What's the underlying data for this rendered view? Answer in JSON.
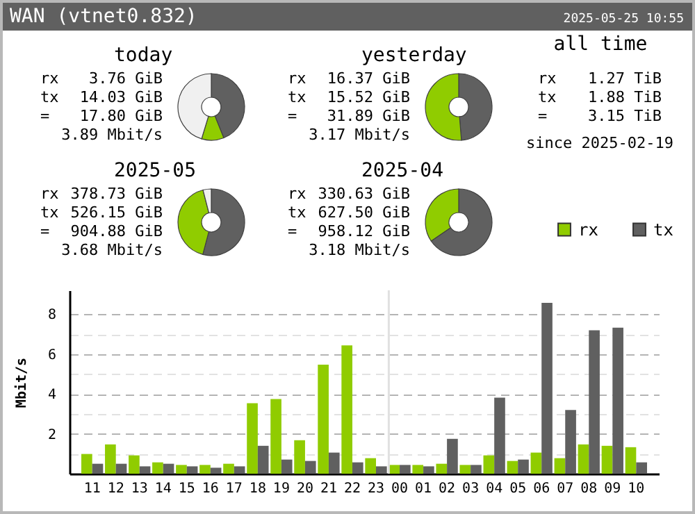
{
  "chart_data": [
    {
      "type": "other",
      "title": "WAN (vtnet0.832)",
      "annotations": [
        "2025-05-25 10:55"
      ]
    },
    {
      "type": "donut",
      "title": "today",
      "categories": [
        null,
        null,
        null
      ],
      "values": [
        43.9,
        10.8,
        45.3
      ],
      "colors": [
        "#606060",
        "#90cc00",
        "#f0f0f0"
      ],
      "legend": false,
      "annotations": [
        "rx",
        "3.76 GiB",
        "tx",
        "14.03 GiB",
        "=",
        "17.80 GiB",
        "3.89 Mbit/s"
      ]
    },
    {
      "type": "donut",
      "title": "yesterday",
      "categories": [
        null,
        null
      ],
      "values": [
        48.7,
        51.3
      ],
      "colors": [
        "#606060",
        "#90cc00"
      ],
      "legend": false,
      "annotations": [
        "rx",
        "16.37 GiB",
        "tx",
        "15.52 GiB",
        "=",
        "31.89 GiB",
        "3.17 Mbit/s"
      ]
    },
    {
      "type": "other",
      "title": "all time",
      "annotations": [
        "rx",
        "1.27 TiB",
        "tx",
        "1.88 TiB",
        "=",
        "3.15 TiB",
        "since 2025-02-19"
      ]
    },
    {
      "type": "donut",
      "title": "2025-05",
      "categories": [
        null,
        null,
        null
      ],
      "values": [
        54.1,
        41.9,
        4.0
      ],
      "colors": [
        "#606060",
        "#90cc00",
        "#f0f0f0"
      ],
      "legend": false,
      "annotations": [
        "rx",
        "378.73 GiB",
        "tx",
        "526.15 GiB",
        "=",
        "904.88 GiB",
        "3.68 Mbit/s"
      ]
    },
    {
      "type": "donut",
      "title": "2025-04",
      "categories": [
        null,
        null
      ],
      "values": [
        65.5,
        34.5
      ],
      "colors": [
        "#606060",
        "#90cc00"
      ],
      "legend": false,
      "annotations": [
        "rx",
        "330.63 GiB",
        "tx",
        "627.50 GiB",
        "=",
        "958.12 GiB",
        "3.18 Mbit/s"
      ]
    },
    {
      "type": "bar",
      "ylabel": "Mbit/s",
      "categories": [
        "11",
        "12",
        "13",
        "14",
        "15",
        "16",
        "17",
        "18",
        "19",
        "20",
        "21",
        "22",
        "23",
        "00",
        "01",
        "02",
        "03",
        "04",
        "05",
        "06",
        "07",
        "08",
        "09",
        "10"
      ],
      "series": [
        {
          "name": "rx",
          "color": "#90cc00",
          "values": [
            0.99,
            1.47,
            0.92,
            0.57,
            0.44,
            0.44,
            0.5,
            3.54,
            3.75,
            1.68,
            5.47,
            6.44,
            0.78,
            0.44,
            0.44,
            0.5,
            0.44,
            0.92,
            0.64,
            1.06,
            0.78,
            1.47,
            1.4,
            1.33
          ]
        },
        {
          "name": "tx",
          "color": "#606060",
          "values": [
            0.5,
            0.5,
            0.37,
            0.5,
            0.37,
            0.3,
            0.37,
            1.4,
            0.71,
            0.64,
            1.06,
            0.57,
            0.37,
            0.44,
            0.37,
            1.75,
            0.44,
            3.82,
            0.71,
            8.57,
            3.2,
            7.2,
            7.33,
            0.57
          ]
        }
      ],
      "ylim": [
        0,
        9.2
      ],
      "yticks": [
        {
          "value": 1,
          "label": null
        },
        2,
        {
          "value": 3,
          "label": null
        },
        4,
        {
          "value": 5,
          "label": null
        },
        6,
        {
          "value": 7,
          "label": null
        },
        8
      ],
      "grid": "y",
      "legend": "top right",
      "ref_lines": [
        {
          "axis": "x",
          "value": "00",
          "color": "#e0e0e0"
        }
      ]
    }
  ]
}
